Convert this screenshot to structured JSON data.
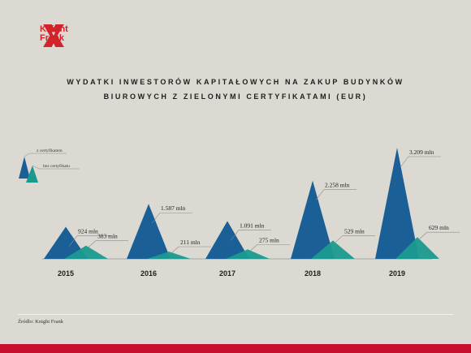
{
  "brand": {
    "line1": "Knight",
    "line2": "Frank",
    "color": "#d2232a"
  },
  "colors": {
    "with_cert": "#1a5f96",
    "without_cert": "#1a9a8f",
    "background": "#dcd9d2",
    "bottom_bar": "#c8102e"
  },
  "source": "Źródło: Knight Frank",
  "chart_data": {
    "type": "area",
    "title_line1": "WYDATKI INWESTORÓW KAPITAŁOWYCH NA ZAKUP BUDYNKÓW",
    "title_line2": "BIUROWYCH Z ZIELONYMI CERTYFIKATAMI   (EUR)",
    "categories": [
      "2015",
      "2016",
      "2017",
      "2018",
      "2019"
    ],
    "series": [
      {
        "name": "z certyfikatem",
        "values": [
          924,
          1587,
          1091,
          2258,
          3209
        ],
        "labels": [
          "924 mln",
          "1.587 mln",
          "1.091 mln",
          "2.258 mln",
          "3.209 mln"
        ]
      },
      {
        "name": "bez certyfikatu",
        "values": [
          383,
          211,
          275,
          529,
          629
        ],
        "labels": [
          "383 mln",
          "211 mln",
          "275 mln",
          "529 mln",
          "629 mln"
        ]
      }
    ],
    "legend_position": "top-left",
    "ylim": [
      0,
      3400
    ],
    "grid": false
  }
}
